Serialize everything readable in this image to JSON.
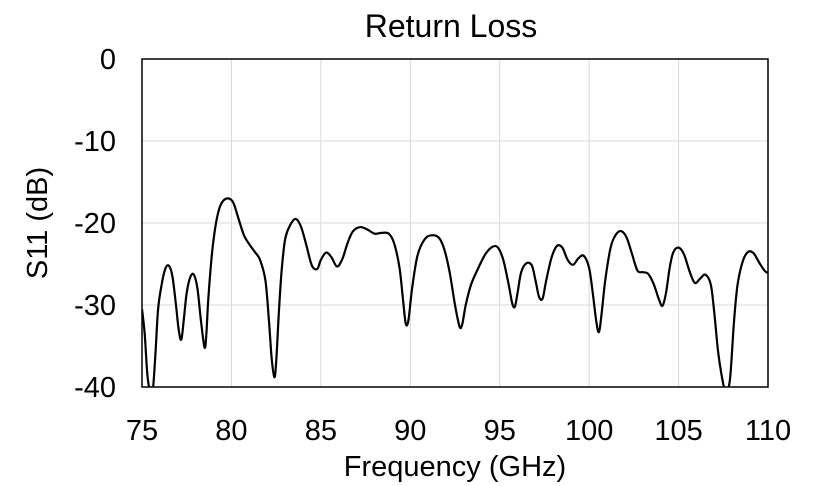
{
  "chart_data": {
    "type": "line",
    "title": "Return Loss",
    "xlabel": "Frequency (GHz)",
    "ylabel": "S11 (dB)",
    "xlim": [
      75,
      110
    ],
    "ylim": [
      -40,
      0
    ],
    "xticks": [
      75,
      80,
      85,
      90,
      95,
      100,
      105,
      110
    ],
    "yticks": [
      0,
      -10,
      -20,
      -30,
      -40
    ],
    "grid": true,
    "series": [
      {
        "color": "#000000",
        "x": [
          75.0,
          75.15,
          75.3,
          75.45,
          75.6,
          75.75,
          75.9,
          76.1,
          76.3,
          76.5,
          76.7,
          76.9,
          77.05,
          77.2,
          77.35,
          77.5,
          77.7,
          77.9,
          78.1,
          78.3,
          78.5,
          78.6,
          78.7,
          78.9,
          79.1,
          79.3,
          79.5,
          79.8,
          80.1,
          80.4,
          80.7,
          81.0,
          81.3,
          81.6,
          81.9,
          82.1,
          82.25,
          82.4,
          82.5,
          82.65,
          82.8,
          83.0,
          83.3,
          83.6,
          83.9,
          84.2,
          84.5,
          84.8,
          85.0,
          85.3,
          85.6,
          85.9,
          86.2,
          86.5,
          86.8,
          87.2,
          87.6,
          88.0,
          88.4,
          88.8,
          89.1,
          89.4,
          89.6,
          89.75,
          89.9,
          90.1,
          90.4,
          90.8,
          91.2,
          91.6,
          91.9,
          92.2,
          92.5,
          92.75,
          92.9,
          93.1,
          93.4,
          93.8,
          94.2,
          94.6,
          94.9,
          95.2,
          95.5,
          95.7,
          95.85,
          96.0,
          96.2,
          96.5,
          96.8,
          97.0,
          97.2,
          97.4,
          97.6,
          97.9,
          98.2,
          98.5,
          98.8,
          99.1,
          99.4,
          99.7,
          100.0,
          100.2,
          100.4,
          100.55,
          100.7,
          100.9,
          101.2,
          101.5,
          101.8,
          102.1,
          102.4,
          102.7,
          103.0,
          103.3,
          103.6,
          103.9,
          104.1,
          104.3,
          104.5,
          104.7,
          105.0,
          105.3,
          105.6,
          105.9,
          106.2,
          106.5,
          106.8,
          107.0,
          107.2,
          107.4,
          107.6,
          107.75,
          107.9,
          108.1,
          108.3,
          108.6,
          108.9,
          109.2,
          109.5,
          109.8,
          110.0
        ],
        "y": [
          -30.5,
          -33.5,
          -38.5,
          -40.5,
          -40.5,
          -36.0,
          -30.5,
          -27.5,
          -25.6,
          -25.2,
          -26.5,
          -30.0,
          -33.0,
          -34.2,
          -31.5,
          -28.5,
          -26.6,
          -26.3,
          -28.0,
          -32.0,
          -35.2,
          -33.5,
          -29.5,
          -24.0,
          -20.5,
          -18.4,
          -17.4,
          -17.0,
          -17.5,
          -19.5,
          -21.5,
          -22.6,
          -23.5,
          -24.5,
          -27.0,
          -32.0,
          -36.5,
          -38.8,
          -37.0,
          -31.0,
          -26.0,
          -22.0,
          -20.2,
          -19.5,
          -20.5,
          -22.8,
          -25.2,
          -25.6,
          -24.5,
          -23.6,
          -24.2,
          -25.3,
          -24.4,
          -22.4,
          -21.0,
          -20.5,
          -20.8,
          -21.3,
          -21.2,
          -21.3,
          -22.5,
          -25.5,
          -29.5,
          -32.3,
          -31.8,
          -28.0,
          -24.0,
          -22.0,
          -21.5,
          -21.8,
          -23.2,
          -26.0,
          -30.0,
          -32.6,
          -32.4,
          -30.0,
          -27.5,
          -25.5,
          -23.8,
          -22.9,
          -23.0,
          -24.5,
          -27.5,
          -29.8,
          -30.2,
          -28.5,
          -26.0,
          -24.9,
          -25.2,
          -27.0,
          -29.0,
          -29.2,
          -27.0,
          -24.2,
          -22.8,
          -23.0,
          -24.5,
          -25.1,
          -24.3,
          -24.0,
          -25.5,
          -28.5,
          -32.0,
          -33.3,
          -31.0,
          -27.0,
          -23.0,
          -21.4,
          -21.0,
          -21.8,
          -23.8,
          -25.8,
          -26.0,
          -26.2,
          -27.4,
          -29.3,
          -30.1,
          -28.5,
          -25.5,
          -23.6,
          -23.0,
          -23.8,
          -25.8,
          -27.3,
          -26.8,
          -26.3,
          -27.5,
          -31.0,
          -35.5,
          -38.5,
          -40.5,
          -40.5,
          -38.5,
          -32.0,
          -27.5,
          -24.6,
          -23.5,
          -23.7,
          -24.8,
          -25.8,
          -26.1
        ]
      }
    ]
  }
}
